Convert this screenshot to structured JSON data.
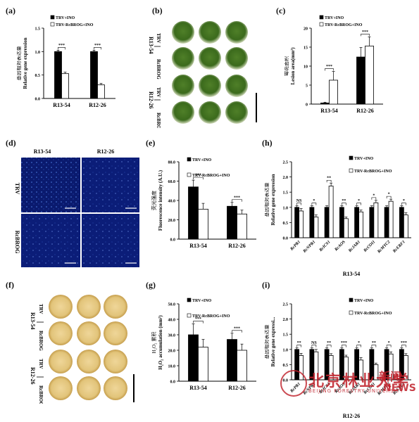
{
  "panels": {
    "a": "(a)",
    "b": "(b)",
    "c": "(c)",
    "d": "(d)",
    "e": "(e)",
    "f": "(f)",
    "g": "(g)",
    "h": "(h)",
    "i": "(i)"
  },
  "photo_labels": {
    "cols": [
      "R13-54",
      "R12-26"
    ],
    "rows": [
      "TRV",
      "RcBROG"
    ]
  },
  "legend": {
    "trv": "TRV+INO",
    "rcbrog": "TRV-RcBROG+INO"
  },
  "colors": {
    "trv": "#000000",
    "rcbrog": "#ffffff",
    "leaf_green": "#3d6b1f",
    "leaf_yellow": "#e2c47a",
    "fluor_blue": "#0a1a6e"
  },
  "watermark": {
    "cn": "北京林业大学",
    "en": "BEIJING FORESTRY UNIVERSITY",
    "news_cn": "新闻",
    "news_en": "NEWS"
  },
  "chart_data": [
    {
      "id": "a",
      "type": "bar",
      "categories": [
        "R13-54",
        "R12-26"
      ],
      "series": [
        {
          "name": "TRV+INO",
          "values": [
            1.0,
            1.0
          ],
          "errors": [
            0.03,
            0.03
          ]
        },
        {
          "name": "TRV-RcBROG+INO",
          "values": [
            0.53,
            0.29
          ],
          "errors": [
            0.03,
            0.03
          ]
        }
      ],
      "sig": [
        "***",
        "***"
      ],
      "ylabel_cn": "基因相对表达量",
      "ylabel": "Relative gene expression",
      "ylim": [
        0,
        1.5
      ],
      "yticks": [
        "0.0",
        "0.5",
        "1.0",
        "1.5"
      ]
    },
    {
      "id": "c",
      "type": "bar",
      "categories": [
        "R13-54",
        "R12-26"
      ],
      "series": [
        {
          "name": "TRV+INO",
          "values": [
            0.3,
            12.4
          ],
          "errors": [
            0.2,
            2.5
          ]
        },
        {
          "name": "TRV-RcBROG+INO",
          "values": [
            6.3,
            15.3
          ],
          "errors": [
            2.3,
            2.4
          ]
        }
      ],
      "sig": [
        "***",
        "***"
      ],
      "ylabel_cn": "霉斑面积",
      "ylabel": "Lesion area(mm²)",
      "ylim": [
        0,
        20
      ],
      "yticks": [
        "0",
        "5",
        "10",
        "15",
        "20"
      ]
    },
    {
      "id": "e",
      "type": "bar",
      "categories": [
        "R13-54",
        "R12-26"
      ],
      "series": [
        {
          "name": "TRV+INO",
          "values": [
            54,
            34
          ],
          "errors": [
            7,
            4
          ]
        },
        {
          "name": "TRV-RcBROG+INO",
          "values": [
            31,
            26
          ],
          "errors": [
            6,
            4
          ]
        }
      ],
      "sig": [
        "***",
        "***"
      ],
      "ylabel_cn": "荧光强度",
      "ylabel": "Fluorescence intensity (A.U.)",
      "ylim": [
        0,
        80
      ],
      "yticks": [
        "0.0",
        "20.0",
        "40.0",
        "60.0",
        "80.0"
      ]
    },
    {
      "id": "g",
      "type": "bar",
      "categories": [
        "R13-54",
        "R12-26"
      ],
      "series": [
        {
          "name": "TRV+INO",
          "values": [
            30,
            27
          ],
          "errors": [
            7,
            4
          ]
        },
        {
          "name": "TRV-RcBROG+INO",
          "values": [
            22,
            20
          ],
          "errors": [
            5,
            4
          ]
        }
      ],
      "sig": [
        "***",
        "***"
      ],
      "ylabel_cn": "H₂O₂ 累积",
      "ylabel": "H₂O₂ accumulation (mm²)",
      "ylim": [
        0,
        50
      ],
      "yticks": [
        "0.0",
        "10.0",
        "20.0",
        "30.0",
        "40.0",
        "50.0"
      ]
    },
    {
      "id": "h",
      "type": "bar",
      "categories": [
        "RcPR1",
        "RcNPR1",
        "RcICS1",
        "RcAOS",
        "RcJAR1",
        "RcCOI1",
        "RcMYC2",
        "RcERF1"
      ],
      "series": [
        {
          "name": "TRV+INO",
          "values": [
            1.0,
            1.0,
            1.0,
            1.0,
            1.0,
            1.0,
            1.0,
            1.0
          ],
          "errors": [
            0.05,
            0.05,
            0.05,
            0.05,
            0.05,
            0.05,
            0.05,
            0.05
          ]
        },
        {
          "name": "TRV-RcBROG+INO",
          "values": [
            0.88,
            0.68,
            1.7,
            0.63,
            0.85,
            1.15,
            1.2,
            0.75
          ],
          "errors": [
            0.08,
            0.07,
            0.1,
            0.05,
            0.06,
            0.08,
            0.07,
            0.07
          ]
        }
      ],
      "sig": [
        "NS",
        "*",
        "**",
        "**",
        "*",
        "*",
        "*",
        "*"
      ],
      "ylabel_cn": "基因相对表达量",
      "ylabel": "Relative gene expression",
      "xlabel": "R13-54",
      "ylim": [
        0,
        2.5
      ],
      "yticks": [
        "0.0",
        "0.5",
        "1.0",
        "1.5",
        "2.0",
        "2.5"
      ]
    },
    {
      "id": "i",
      "type": "bar",
      "categories": [
        "RcPR1",
        "RcNPR1",
        "RcICS1",
        "RcAOS",
        "RcJAR1",
        "RcCOI1",
        "RcMYC2",
        "RcERF1"
      ],
      "series": [
        {
          "name": "TRV+INO",
          "values": [
            1.0,
            1.0,
            1.0,
            1.0,
            1.0,
            1.0,
            1.0,
            1.0
          ],
          "errors": [
            0.05,
            0.05,
            0.05,
            0.05,
            0.05,
            0.05,
            0.05,
            0.05
          ]
        },
        {
          "name": "TRV-RcBROG+INO",
          "values": [
            0.8,
            0.92,
            0.8,
            0.75,
            0.65,
            0.5,
            0.85,
            0.8
          ],
          "errors": [
            0.07,
            0.08,
            0.06,
            0.06,
            0.08,
            0.05,
            0.07,
            0.06
          ]
        }
      ],
      "sig": [
        "**",
        "NS",
        "**",
        "***",
        "*",
        "**",
        "*",
        "***"
      ],
      "ylabel_cn": "基因相对表达量",
      "ylabel": "Relative gene expressi...",
      "xlabel": "R12-26",
      "ylim": [
        0,
        2.5
      ],
      "yticks": [
        "0.0",
        "0.5",
        "1.0",
        "1.5",
        "2.0",
        "2.5"
      ]
    }
  ]
}
